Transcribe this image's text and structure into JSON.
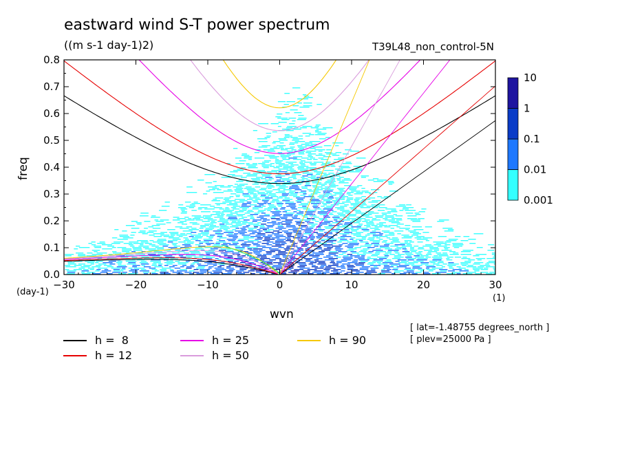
{
  "title": "eastward wind S-T power spectrum",
  "subtitle": "((m s-1 day-1)2)",
  "experiment": "T39L48_non_control-5N",
  "info": [
    "[ lat=-1.48755 degrees_north ]",
    "[ plev=25000 Pa ]"
  ],
  "chart_data": {
    "type": "heatmap",
    "title": "eastward wind S-T power spectrum",
    "units": "((m s-1 day-1)2)",
    "xlabel": "wvn",
    "xunit": "(1)",
    "ylabel": "freq",
    "yunit": "(day-1)",
    "xlim": [
      -30,
      30
    ],
    "ylim": [
      0,
      0.8
    ],
    "xticks": [
      "-30",
      "-20",
      "-10",
      "0",
      "10",
      "20",
      "30"
    ],
    "yticks": [
      "0.0",
      "0.1",
      "0.2",
      "0.3",
      "0.4",
      "0.5",
      "0.6",
      "0.7",
      "0.8"
    ],
    "colorbar": {
      "levels": [
        "0.001",
        "0.01",
        "0.1",
        "1",
        "10"
      ],
      "colors": [
        "#33ffff",
        "#1e78ff",
        "#0a3cc8",
        "#1e14a0"
      ],
      "placement": "right"
    },
    "dispersion_curves": [
      {
        "h": 8,
        "label": "h =  8",
        "color": "#000000"
      },
      {
        "h": 12,
        "label": "h = 12",
        "color": "#e60000"
      },
      {
        "h": 25,
        "label": "h = 25",
        "color": "#e600e6"
      },
      {
        "h": 50,
        "label": "h = 50",
        "color": "#d99bdc"
      },
      {
        "h": 90,
        "label": "h = 90",
        "color": "#f5c800"
      }
    ],
    "mixed_rossby_gravity_curves_color": "#00ff55",
    "kelvin_lines": [
      {
        "h": 90,
        "color": "#eeee00"
      }
    ]
  }
}
